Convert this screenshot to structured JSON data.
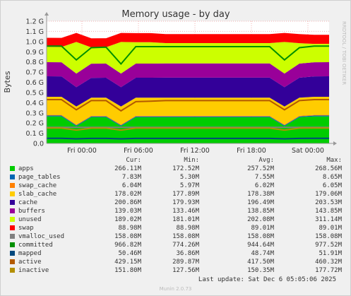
{
  "chart_data": {
    "type": "area",
    "title": "Memory usage - by day",
    "ylabel": "Bytes",
    "ylim": [
      0,
      1.2
    ],
    "y_unit": "G",
    "y_ticks": [
      "0.0",
      "0.1 G",
      "0.2 G",
      "0.3 G",
      "0.4 G",
      "0.5 G",
      "0.6 G",
      "0.7 G",
      "0.8 G",
      "0.9 G",
      "1.0 G",
      "1.1 G",
      "1.2 G"
    ],
    "x_ticks": [
      "Fri 00:00",
      "Fri 06:00",
      "Fri 12:00",
      "Fri 18:00",
      "Sat 00:00"
    ],
    "grid": true,
    "series": [
      {
        "name": "apps",
        "color": "#00cc00",
        "values": [
          0.266,
          0.266,
          0.17,
          0.257,
          0.257,
          0.17,
          0.257,
          0.257,
          0.257,
          0.257,
          0.257,
          0.257,
          0.257,
          0.257,
          0.257,
          0.257,
          0.17,
          0.257,
          0.266,
          0.266
        ]
      },
      {
        "name": "page_tables",
        "color": "#0066b3",
        "values": [
          0.008,
          0.008,
          0.008,
          0.008,
          0.008,
          0.008,
          0.008,
          0.008,
          0.008,
          0.008,
          0.008,
          0.008,
          0.008,
          0.008,
          0.008,
          0.008,
          0.008,
          0.008,
          0.008,
          0.008
        ]
      },
      {
        "name": "swap_cache",
        "color": "#ff8000",
        "values": [
          0.006,
          0.006,
          0.006,
          0.006,
          0.006,
          0.006,
          0.006,
          0.006,
          0.006,
          0.006,
          0.006,
          0.006,
          0.006,
          0.006,
          0.006,
          0.006,
          0.006,
          0.006,
          0.006,
          0.006
        ]
      },
      {
        "name": "slab_cache",
        "color": "#ffcc00",
        "values": [
          0.178,
          0.178,
          0.178,
          0.178,
          0.178,
          0.178,
          0.178,
          0.178,
          0.178,
          0.178,
          0.178,
          0.178,
          0.178,
          0.178,
          0.178,
          0.178,
          0.178,
          0.178,
          0.178,
          0.178
        ]
      },
      {
        "name": "cache",
        "color": "#330099",
        "values": [
          0.201,
          0.2,
          0.19,
          0.195,
          0.196,
          0.19,
          0.196,
          0.196,
          0.197,
          0.197,
          0.197,
          0.197,
          0.197,
          0.197,
          0.197,
          0.197,
          0.19,
          0.196,
          0.2,
          0.201
        ]
      },
      {
        "name": "buffers",
        "color": "#990099",
        "values": [
          0.139,
          0.139,
          0.134,
          0.139,
          0.139,
          0.134,
          0.139,
          0.139,
          0.139,
          0.139,
          0.139,
          0.139,
          0.139,
          0.139,
          0.139,
          0.139,
          0.134,
          0.139,
          0.139,
          0.139
        ]
      },
      {
        "name": "unused",
        "color": "#ccff00",
        "values": [
          0.15,
          0.15,
          0.31,
          0.16,
          0.16,
          0.31,
          0.21,
          0.21,
          0.2,
          0.2,
          0.2,
          0.2,
          0.2,
          0.2,
          0.2,
          0.2,
          0.31,
          0.2,
          0.18,
          0.18
        ]
      },
      {
        "name": "swap",
        "color": "#ff0000",
        "values": [
          0.089,
          0.089,
          0.089,
          0.089,
          0.089,
          0.089,
          0.089,
          0.089,
          0.089,
          0.089,
          0.089,
          0.089,
          0.089,
          0.089,
          0.089,
          0.089,
          0.089,
          0.089,
          0.089,
          0.089
        ]
      }
    ],
    "line_series": [
      {
        "name": "vmalloc_used",
        "color": "#808080",
        "values": [
          0.158,
          0.158,
          0.158,
          0.158,
          0.158,
          0.158,
          0.158,
          0.158,
          0.158,
          0.158,
          0.158,
          0.158,
          0.158,
          0.158,
          0.158,
          0.158,
          0.158,
          0.158,
          0.158,
          0.158
        ]
      },
      {
        "name": "committed",
        "color": "#008f00",
        "values": [
          0.955,
          0.955,
          0.82,
          0.94,
          0.945,
          0.78,
          0.95,
          0.95,
          0.95,
          0.95,
          0.95,
          0.95,
          0.95,
          0.95,
          0.95,
          0.95,
          0.82,
          0.94,
          0.955,
          0.955
        ]
      },
      {
        "name": "mapped",
        "color": "#00487d",
        "values": [
          0.05,
          0.05,
          0.045,
          0.049,
          0.049,
          0.045,
          0.049,
          0.049,
          0.049,
          0.049,
          0.049,
          0.049,
          0.049,
          0.049,
          0.049,
          0.049,
          0.045,
          0.049,
          0.05,
          0.05
        ]
      },
      {
        "name": "active",
        "color": "#b35a00",
        "values": [
          0.43,
          0.43,
          0.33,
          0.42,
          0.42,
          0.32,
          0.41,
          0.415,
          0.42,
          0.42,
          0.42,
          0.42,
          0.42,
          0.42,
          0.42,
          0.42,
          0.33,
          0.42,
          0.43,
          0.43
        ]
      },
      {
        "name": "inactive",
        "color": "#b38f00",
        "values": [
          0.151,
          0.151,
          0.13,
          0.15,
          0.15,
          0.13,
          0.15,
          0.15,
          0.15,
          0.15,
          0.15,
          0.15,
          0.15,
          0.15,
          0.15,
          0.15,
          0.13,
          0.15,
          0.151,
          0.151
        ]
      }
    ]
  },
  "side_label": "RRDTOOL / TOBI OETIKER",
  "legend": {
    "headers": [
      "Cur:",
      "Min:",
      "Avg:",
      "Max:"
    ],
    "rows": [
      {
        "name": "apps",
        "color": "#00cc00",
        "cur": "266.11M",
        "min": "172.52M",
        "avg": "257.52M",
        "max": "268.56M"
      },
      {
        "name": "page_tables",
        "color": "#0066b3",
        "cur": "7.83M",
        "min": "5.30M",
        "avg": "7.55M",
        "max": "8.65M"
      },
      {
        "name": "swap_cache",
        "color": "#ff8000",
        "cur": "6.04M",
        "min": "5.97M",
        "avg": "6.02M",
        "max": "6.05M"
      },
      {
        "name": "slab_cache",
        "color": "#ffcc00",
        "cur": "178.02M",
        "min": "177.89M",
        "avg": "178.38M",
        "max": "179.06M"
      },
      {
        "name": "cache",
        "color": "#330099",
        "cur": "200.86M",
        "min": "179.93M",
        "avg": "196.49M",
        "max": "203.53M"
      },
      {
        "name": "buffers",
        "color": "#990099",
        "cur": "139.03M",
        "min": "133.46M",
        "avg": "138.85M",
        "max": "143.85M"
      },
      {
        "name": "unused",
        "color": "#ccff00",
        "cur": "189.02M",
        "min": "181.01M",
        "avg": "202.08M",
        "max": "311.14M"
      },
      {
        "name": "swap",
        "color": "#ff0000",
        "cur": "88.98M",
        "min": "88.98M",
        "avg": "89.01M",
        "max": "89.01M"
      },
      {
        "name": "vmalloc_used",
        "color": "#808080",
        "cur": "158.08M",
        "min": "158.08M",
        "avg": "158.08M",
        "max": "158.08M"
      },
      {
        "name": "committed",
        "color": "#008f00",
        "cur": "966.82M",
        "min": "774.26M",
        "avg": "944.64M",
        "max": "977.52M"
      },
      {
        "name": "mapped",
        "color": "#00487d",
        "cur": "50.46M",
        "min": "36.86M",
        "avg": "48.74M",
        "max": "51.91M"
      },
      {
        "name": "active",
        "color": "#b35a00",
        "cur": "429.15M",
        "min": "289.87M",
        "avg": "417.50M",
        "max": "460.32M"
      },
      {
        "name": "inactive",
        "color": "#b38f00",
        "cur": "151.80M",
        "min": "127.56M",
        "avg": "150.35M",
        "max": "177.72M"
      }
    ]
  },
  "last_update": "Last update: Sat Dec  6 05:05:06 2025",
  "footer": "Munin 2.0.73"
}
